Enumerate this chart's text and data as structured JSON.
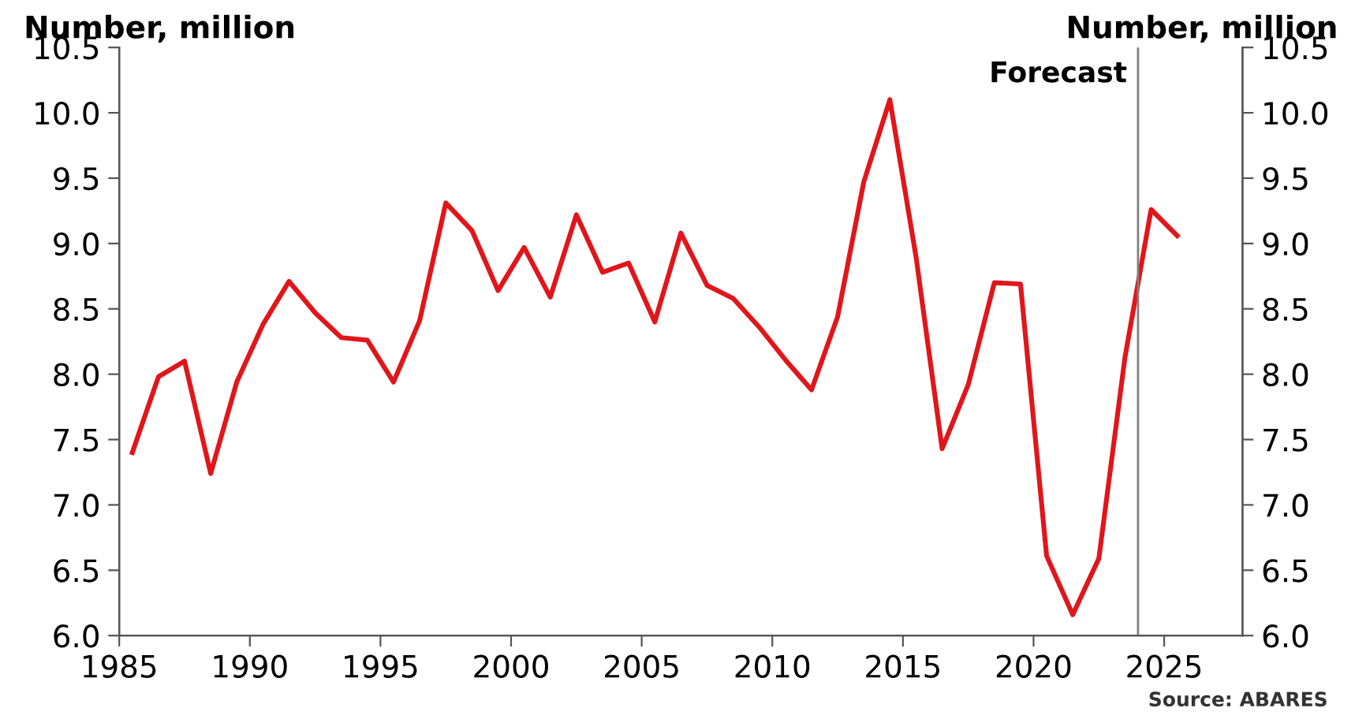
{
  "chart_data": {
    "type": "line",
    "ylabel": "Number, million",
    "y2label": "Number, million",
    "x": [
      1985.5,
      1986.5,
      1987.5,
      1988.5,
      1989.5,
      1990.5,
      1991.5,
      1992.5,
      1993.5,
      1994.5,
      1995.5,
      1996.5,
      1997.5,
      1998.5,
      1999.5,
      2000.5,
      2001.5,
      2002.5,
      2003.5,
      2004.5,
      2005.5,
      2006.5,
      2007.5,
      2008.5,
      2009.5,
      2010.5,
      2011.5,
      2012.5,
      2013.5,
      2014.5,
      2015.5,
      2016.5,
      2017.5,
      2018.5,
      2019.5,
      2020.5,
      2021.5,
      2022.5,
      2023.5,
      2024.5,
      2025.5
    ],
    "series": [
      {
        "color": "#e0161b",
        "values": [
          7.4,
          7.98,
          8.1,
          7.24,
          7.94,
          8.38,
          8.71,
          8.47,
          8.28,
          8.26,
          7.94,
          8.41,
          9.31,
          9.1,
          8.64,
          8.97,
          8.59,
          9.22,
          8.78,
          8.85,
          8.4,
          9.08,
          8.68,
          8.58,
          8.36,
          8.11,
          7.88,
          8.44,
          9.47,
          10.1,
          8.9,
          7.43,
          7.92,
          8.7,
          8.69,
          6.61,
          6.16,
          6.59,
          8.13,
          9.26,
          9.06
        ]
      }
    ],
    "xlim": [
      1985,
      2028
    ],
    "xticks": [
      1985,
      1990,
      1995,
      2000,
      2005,
      2010,
      2015,
      2020,
      2025
    ],
    "ylim": [
      6.0,
      10.5
    ],
    "yticks": [
      {
        "value": 6.0,
        "label": "6.0"
      },
      {
        "value": 6.5,
        "label": "6.5"
      },
      {
        "value": 7.0,
        "label": "7.0"
      },
      {
        "value": 7.5,
        "label": "7.5"
      },
      {
        "value": 8.0,
        "label": "8.0"
      },
      {
        "value": 8.5,
        "label": "8.5"
      },
      {
        "value": 9.0,
        "label": "9.0"
      },
      {
        "value": 9.5,
        "label": "9.5"
      },
      {
        "value": 10.0,
        "label": "10.0"
      },
      {
        "value": 10.5,
        "label": "10.5"
      }
    ],
    "y2lim": [
      6.0,
      10.5
    ],
    "y2ticks": [
      {
        "value": 6.0,
        "label": "6.0"
      },
      {
        "value": 6.5,
        "label": "6.5"
      },
      {
        "value": 7.0,
        "label": "7.0"
      },
      {
        "value": 7.5,
        "label": "7.5"
      },
      {
        "value": 8.0,
        "label": "8.0"
      },
      {
        "value": 8.5,
        "label": "8.5"
      },
      {
        "value": 9.0,
        "label": "9.0"
      },
      {
        "value": 9.5,
        "label": "9.5"
      },
      {
        "value": 10.0,
        "label": "10.0"
      },
      {
        "value": 10.5,
        "label": "10.5"
      }
    ],
    "ref_lines": [
      {
        "axis": "x",
        "value": 2024,
        "label": "Forecast",
        "color": "#808080"
      }
    ],
    "annotations": [
      "Source: ABARES"
    ],
    "grid": false,
    "legend": false,
    "line_style": "solid",
    "marker": "none"
  }
}
